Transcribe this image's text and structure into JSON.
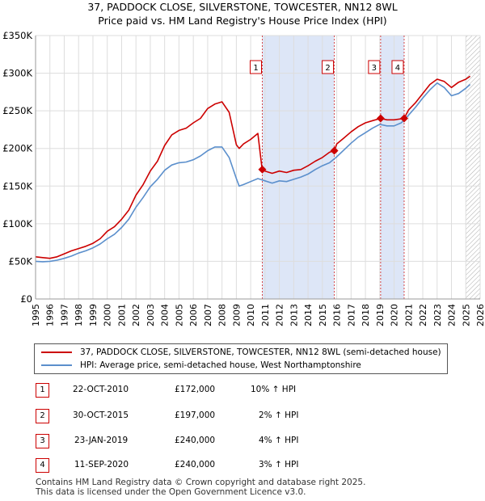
{
  "chart_data": {
    "type": "line",
    "title": "37, PADDOCK CLOSE, SILVERSTONE, TOWCESTER, NN12 8WL",
    "subtitle": "Price paid vs. HM Land Registry's House Price Index (HPI)",
    "xlim": [
      1995,
      2026
    ],
    "ylim": [
      0,
      350000
    ],
    "x_ticks": [
      "1995",
      "1996",
      "1997",
      "1998",
      "1999",
      "2000",
      "2001",
      "2002",
      "2003",
      "2004",
      "2005",
      "2006",
      "2007",
      "2008",
      "2009",
      "2010",
      "2011",
      "2012",
      "2013",
      "2014",
      "2015",
      "2016",
      "2017",
      "2018",
      "2019",
      "2020",
      "2021",
      "2022",
      "2023",
      "2024",
      "2025",
      "2026"
    ],
    "y_ticks": [
      {
        "value": 0,
        "label": "£0"
      },
      {
        "value": 50000,
        "label": "£50K"
      },
      {
        "value": 100000,
        "label": "£100K"
      },
      {
        "value": 150000,
        "label": "£150K"
      },
      {
        "value": 200000,
        "label": "£200K"
      },
      {
        "value": 250000,
        "label": "£250K"
      },
      {
        "value": 300000,
        "label": "£300K"
      },
      {
        "value": 350000,
        "label": "£350K"
      }
    ],
    "series": [
      {
        "name": "37, PADDOCK CLOSE, SILVERSTONE, TOWCESTER, NN12 8WL (semi-detached house)",
        "color": "#cc0000",
        "x": [
          1995.0,
          1995.5,
          1996.0,
          1996.5,
          1997.0,
          1997.5,
          1998.0,
          1998.5,
          1999.0,
          1999.5,
          2000.0,
          2000.5,
          2001.0,
          2001.5,
          2002.0,
          2002.5,
          2003.0,
          2003.5,
          2004.0,
          2004.5,
          2005.0,
          2005.5,
          2006.0,
          2006.5,
          2007.0,
          2007.5,
          2008.0,
          2008.5,
          2009.0,
          2009.2,
          2009.5,
          2010.0,
          2010.5,
          2010.8,
          2011.0,
          2011.5,
          2012.0,
          2012.5,
          2013.0,
          2013.5,
          2014.0,
          2014.5,
          2015.0,
          2015.5,
          2015.83,
          2016.0,
          2016.5,
          2017.0,
          2017.5,
          2018.0,
          2018.5,
          2019.06,
          2019.5,
          2020.0,
          2020.7,
          2021.0,
          2021.5,
          2022.0,
          2022.5,
          2023.0,
          2023.5,
          2024.0,
          2024.5,
          2025.0,
          2025.3
        ],
        "values": [
          56000,
          55000,
          54000,
          56000,
          60000,
          64000,
          67000,
          70000,
          74000,
          80000,
          90000,
          96000,
          106000,
          118000,
          138000,
          152000,
          170000,
          183000,
          204000,
          218000,
          224000,
          227000,
          234000,
          240000,
          253000,
          259000,
          262000,
          248000,
          205000,
          200000,
          206000,
          212000,
          220000,
          172000,
          170000,
          167000,
          170000,
          168000,
          171000,
          172000,
          177000,
          183000,
          188000,
          195000,
          197000,
          206000,
          214000,
          222000,
          229000,
          234000,
          237000,
          240000,
          238000,
          238000,
          240000,
          251000,
          261000,
          273000,
          285000,
          292000,
          289000,
          281000,
          288000,
          292000,
          296000
        ]
      },
      {
        "name": "HPI: Average price, semi-detached house, West Northamptonshire",
        "color": "#5b8fcc",
        "x": [
          1995.0,
          1995.5,
          1996.0,
          1996.5,
          1997.0,
          1997.5,
          1998.0,
          1998.5,
          1999.0,
          1999.5,
          2000.0,
          2000.5,
          2001.0,
          2001.5,
          2002.0,
          2002.5,
          2003.0,
          2003.5,
          2004.0,
          2004.5,
          2005.0,
          2005.5,
          2006.0,
          2006.5,
          2007.0,
          2007.5,
          2008.0,
          2008.5,
          2009.0,
          2009.2,
          2009.5,
          2010.0,
          2010.5,
          2011.0,
          2011.5,
          2012.0,
          2012.5,
          2013.0,
          2013.5,
          2014.0,
          2014.5,
          2015.0,
          2015.5,
          2016.0,
          2016.5,
          2017.0,
          2017.5,
          2018.0,
          2018.5,
          2019.0,
          2019.5,
          2020.0,
          2020.5,
          2021.0,
          2021.5,
          2022.0,
          2022.5,
          2023.0,
          2023.5,
          2024.0,
          2024.5,
          2025.0,
          2025.3
        ],
        "values": [
          50000,
          49500,
          50000,
          51500,
          54000,
          57000,
          61000,
          64000,
          68000,
          73000,
          80000,
          86000,
          95000,
          106000,
          122000,
          135000,
          149000,
          159000,
          171000,
          178000,
          181000,
          182000,
          185000,
          190000,
          197000,
          202000,
          202000,
          188000,
          160000,
          150000,
          152000,
          156000,
          160000,
          157000,
          154000,
          157000,
          156000,
          159000,
          162000,
          166000,
          172000,
          177000,
          181000,
          189000,
          198000,
          207000,
          215000,
          221000,
          227000,
          232000,
          230000,
          230000,
          234000,
          244000,
          255000,
          267000,
          278000,
          287000,
          281000,
          270000,
          273000,
          280000,
          285000
        ]
      }
    ],
    "annotations": [
      {
        "label": "1",
        "x": 2010.81,
        "value": 172000,
        "span_to": 2015.83
      },
      {
        "label": "2",
        "x": 2015.83,
        "value": 197000
      },
      {
        "label": "3",
        "x": 2019.06,
        "value": 240000,
        "span_to": 2020.7
      },
      {
        "label": "4",
        "x": 2020.7,
        "value": 240000
      }
    ],
    "hatch_from": 2025.0
  },
  "colors": {
    "price_line": "#cc0000",
    "hpi_line": "#5b8fcc",
    "band_fill": "#dde6f7",
    "grid": "#dddddd"
  },
  "legend": {
    "price_label": "37, PADDOCK CLOSE, SILVERSTONE, TOWCESTER, NN12 8WL (semi-detached house)",
    "hpi_label": "HPI: Average price, semi-detached house, West Northamptonshire"
  },
  "transactions": [
    {
      "num": "1",
      "date": "22-OCT-2010",
      "price": "£172,000",
      "hpi": "10% ↑ HPI"
    },
    {
      "num": "2",
      "date": "30-OCT-2015",
      "price": "£197,000",
      "hpi": "2% ↑ HPI"
    },
    {
      "num": "3",
      "date": "23-JAN-2019",
      "price": "£240,000",
      "hpi": "4% ↑ HPI"
    },
    {
      "num": "4",
      "date": "11-SEP-2020",
      "price": "£240,000",
      "hpi": "3% ↑ HPI"
    }
  ],
  "footer": {
    "line1": "Contains HM Land Registry data © Crown copyright and database right 2025.",
    "line2": "This data is licensed under the Open Government Licence v3.0."
  }
}
